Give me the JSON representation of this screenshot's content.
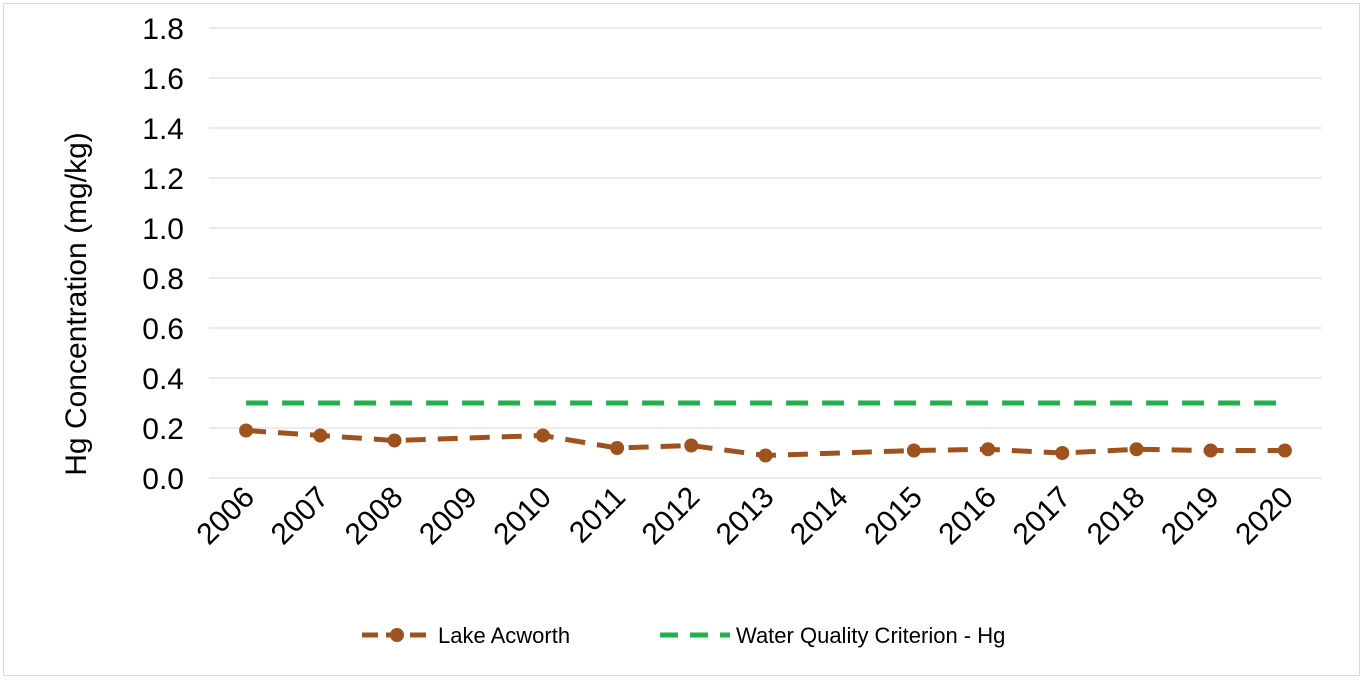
{
  "chart_data": {
    "type": "line",
    "title": "",
    "xlabel": "",
    "ylabel": "Hg Concentration  (mg/kg)",
    "categories": [
      "2006",
      "2007",
      "2008",
      "2009",
      "2010",
      "2011",
      "2012",
      "2013",
      "2014",
      "2015",
      "2016",
      "2017",
      "2018",
      "2019",
      "2020"
    ],
    "ylim": [
      0,
      1.8
    ],
    "yticks": [
      "0.0",
      "0.2",
      "0.4",
      "0.6",
      "0.8",
      "1.0",
      "1.2",
      "1.4",
      "1.6",
      "1.8"
    ],
    "grid": true,
    "legend_position": "bottom",
    "series": [
      {
        "name": "Lake Acworth",
        "color": "#a0521e",
        "style": "dashed-with-markers",
        "values": [
          0.19,
          0.17,
          0.15,
          null,
          0.17,
          0.12,
          0.13,
          0.09,
          null,
          0.11,
          0.115,
          0.1,
          0.115,
          0.11,
          0.11
        ]
      },
      {
        "name": "Water Quality Criterion - Hg",
        "color": "#1fb14a",
        "style": "dashed",
        "values": [
          0.3,
          0.3,
          0.3,
          0.3,
          0.3,
          0.3,
          0.3,
          0.3,
          0.3,
          0.3,
          0.3,
          0.3,
          0.3,
          0.3,
          0.3
        ]
      }
    ]
  }
}
